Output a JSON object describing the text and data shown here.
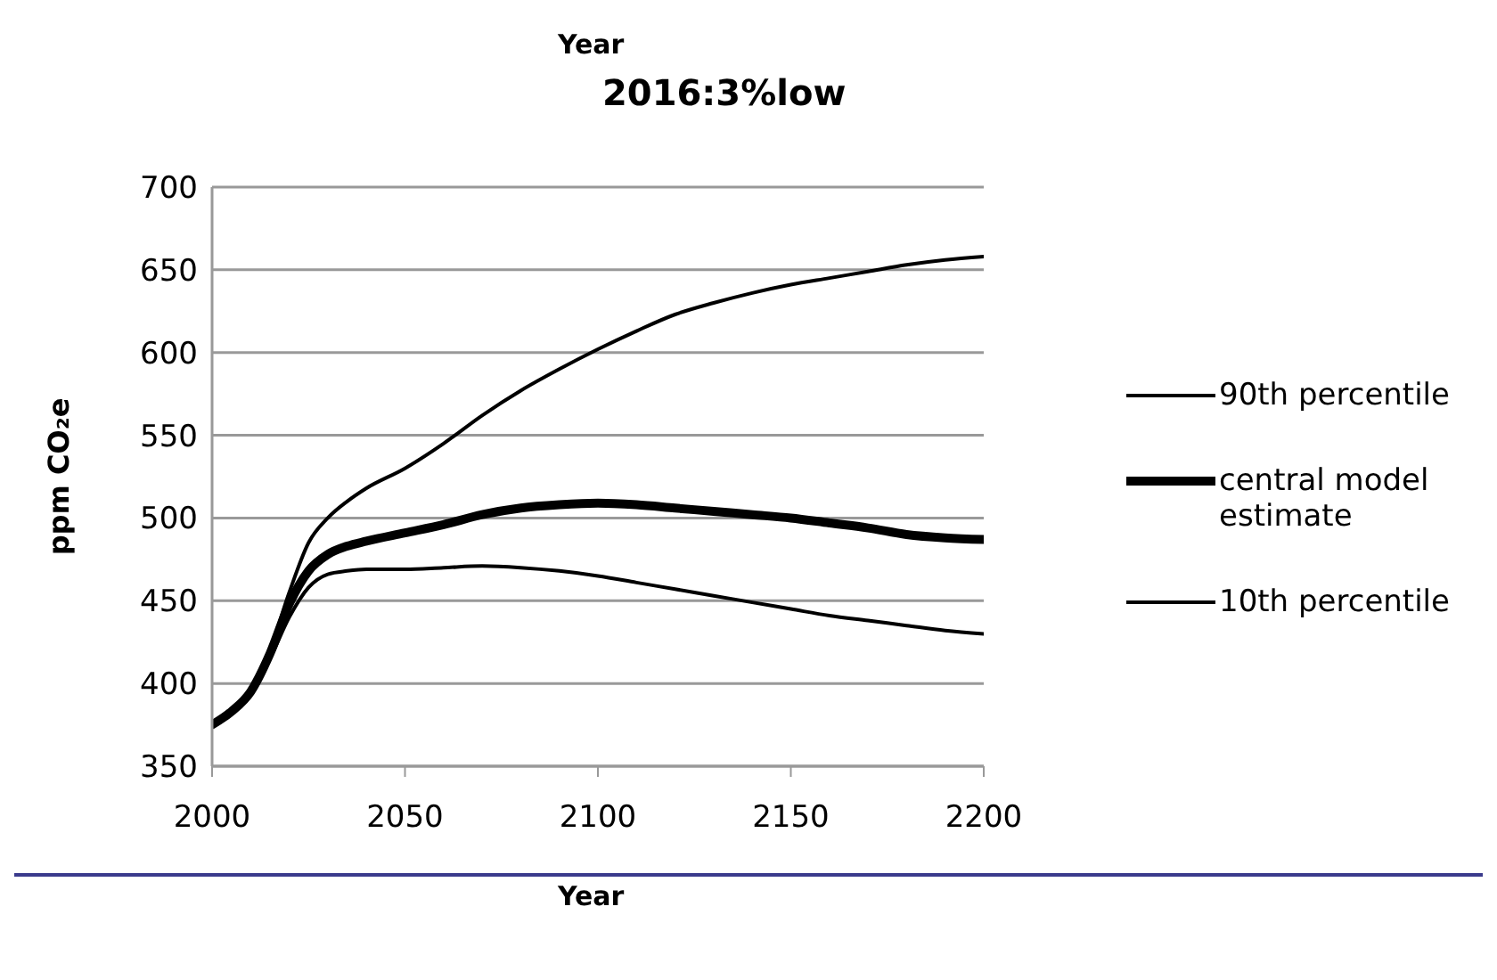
{
  "chart_data": {
    "type": "line",
    "title": "2016:3%low",
    "annotations": [
      "Year"
    ],
    "xlabel": "Year",
    "ylabel": "ppm CO₂e",
    "x": [
      2000,
      2005,
      2010,
      2015,
      2020,
      2025,
      2030,
      2035,
      2040,
      2050,
      2060,
      2070,
      2080,
      2090,
      2100,
      2110,
      2120,
      2130,
      2140,
      2150,
      2160,
      2170,
      2180,
      2190,
      2200
    ],
    "series": [
      {
        "name": "90th percentile",
        "color": "#000000",
        "values": [
          375,
          383,
          395,
          420,
          455,
          485,
          500,
          510,
          518,
          530,
          545,
          562,
          577,
          590,
          602,
          613,
          623,
          630,
          636,
          641,
          645,
          649,
          653,
          656,
          658
        ]
      },
      {
        "name": "central model estimate",
        "color": "#000000",
        "values": [
          375,
          383,
          395,
          418,
          448,
          468,
          478,
          483,
          486,
          491,
          496,
          502,
          506,
          508,
          509,
          508,
          506,
          504,
          502,
          500,
          497,
          494,
          490,
          488,
          487
        ]
      },
      {
        "name": "10th percentile",
        "color": "#000000",
        "values": [
          375,
          383,
          395,
          415,
          440,
          458,
          466,
          468,
          469,
          469,
          470,
          471,
          470,
          468,
          465,
          461,
          457,
          453,
          449,
          445,
          441,
          438,
          435,
          432,
          430
        ]
      }
    ],
    "xlim": [
      2000,
      2200
    ],
    "xticks": [
      2000,
      2050,
      2100,
      2150,
      2200
    ],
    "ylim": [
      350,
      700
    ],
    "yticks": [
      350,
      400,
      450,
      500,
      550,
      600,
      650,
      700
    ],
    "grid": "y",
    "legend": "right",
    "marker": "none",
    "line_style": "solid"
  }
}
